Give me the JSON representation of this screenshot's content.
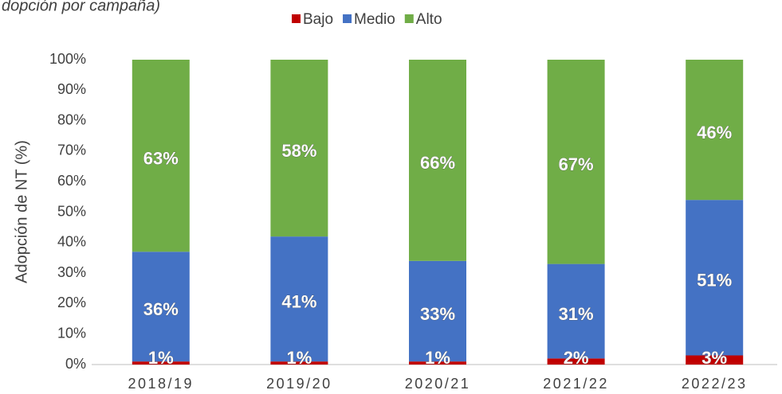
{
  "chart_data": {
    "type": "stacked_bar",
    "title": "dopción por campaña)",
    "y_label": "Adopción de NT (%)",
    "categories": [
      "2018/19",
      "2019/20",
      "2020/21",
      "2021/22",
      "2022/23"
    ],
    "series": [
      {
        "name": "Bajo",
        "color": "#c00000",
        "values": [
          1,
          1,
          1,
          2,
          3
        ],
        "value_labels": [
          "1%",
          "1%",
          "1%",
          "2%",
          "3%"
        ]
      },
      {
        "name": "Medio",
        "color": "#4472c4",
        "values": [
          36,
          41,
          33,
          31,
          51
        ],
        "value_labels": [
          "36%",
          "41%",
          "33%",
          "31%",
          "51%"
        ]
      },
      {
        "name": "Alto",
        "color": "#70ad47",
        "values": [
          63,
          58,
          66,
          67,
          46
        ],
        "value_labels": [
          "63%",
          "58%",
          "66%",
          "67%",
          "46%"
        ]
      }
    ],
    "ylim": [
      0,
      100
    ],
    "yticks": [
      {
        "value": 0,
        "label": "0%"
      },
      {
        "value": 10,
        "label": "10%"
      },
      {
        "value": 20,
        "label": "20%"
      },
      {
        "value": 30,
        "label": "30%"
      },
      {
        "value": 40,
        "label": "40%"
      },
      {
        "value": 50,
        "label": "50%"
      },
      {
        "value": 60,
        "label": "60%"
      },
      {
        "value": 70,
        "label": "70%"
      },
      {
        "value": 80,
        "label": "80%"
      },
      {
        "value": 90,
        "label": "90%"
      },
      {
        "value": 100,
        "label": "100%"
      }
    ],
    "grid": false,
    "legend": "top"
  }
}
